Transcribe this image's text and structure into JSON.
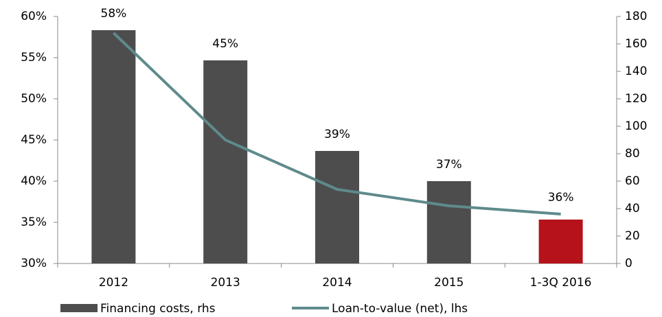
{
  "chart_data": {
    "type": "bar-line",
    "categories": [
      "2012",
      "2013",
      "2014",
      "2015",
      "1-3Q 2016"
    ],
    "series": [
      {
        "name": "Financing costs, rhs",
        "type": "bar",
        "axis": "y2",
        "color": "#4d4d4d",
        "colors": [
          "#4d4d4d",
          "#4d4d4d",
          "#4d4d4d",
          "#4d4d4d",
          "#b5121b"
        ],
        "values": [
          170,
          148,
          82,
          60,
          32
        ]
      },
      {
        "name": "Loan-to-value (net), lhs",
        "type": "line",
        "axis": "y",
        "color": "#5f8a8b",
        "values": [
          58,
          45,
          39,
          37,
          36
        ],
        "value_labels": [
          "58%",
          "45%",
          "39%",
          "37%",
          "36%"
        ]
      }
    ],
    "ylim": [
      30,
      60
    ],
    "yticks": [
      {
        "value": 30,
        "label": "30%"
      },
      {
        "value": 35,
        "label": "35%"
      },
      {
        "value": 40,
        "label": "40%"
      },
      {
        "value": 45,
        "label": "45%"
      },
      {
        "value": 50,
        "label": "50%"
      },
      {
        "value": 55,
        "label": "55%"
      },
      {
        "value": 60,
        "label": "60%"
      }
    ],
    "y2lim": [
      0,
      180
    ],
    "y2ticks": [
      0,
      20,
      40,
      60,
      80,
      100,
      120,
      140,
      160,
      180
    ],
    "legend": "bottom"
  }
}
